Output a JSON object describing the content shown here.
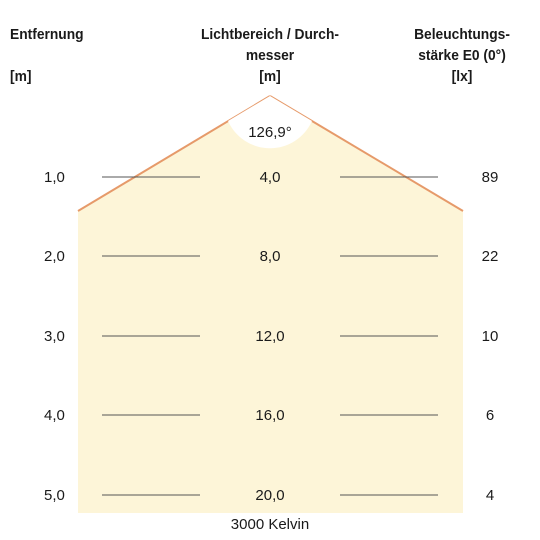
{
  "headers": {
    "distance": {
      "line1": "Entfernung",
      "unit": "[m]"
    },
    "beam": {
      "line1": "Lichtbereich / Durch-",
      "line2": "messer",
      "unit": "[m]"
    },
    "illuminance": {
      "line1": "Beleuchtungs-",
      "line2": "stärke E0 (0°)",
      "unit": "[lx]"
    }
  },
  "beam_angle": "126,9°",
  "rows": [
    {
      "distance": "1,0",
      "diameter": "4,0",
      "illuminance": "89"
    },
    {
      "distance": "2,0",
      "diameter": "8,0",
      "illuminance": "22"
    },
    {
      "distance": "3,0",
      "diameter": "12,0",
      "illuminance": "10"
    },
    {
      "distance": "4,0",
      "diameter": "16,0",
      "illuminance": "6"
    },
    {
      "distance": "5,0",
      "diameter": "20,0",
      "illuminance": "4"
    }
  ],
  "footer": "3000 Kelvin",
  "colors": {
    "beam_fill": "#fdf5d8",
    "beam_edge": "#e69a6a",
    "guide_line": "#555555"
  }
}
